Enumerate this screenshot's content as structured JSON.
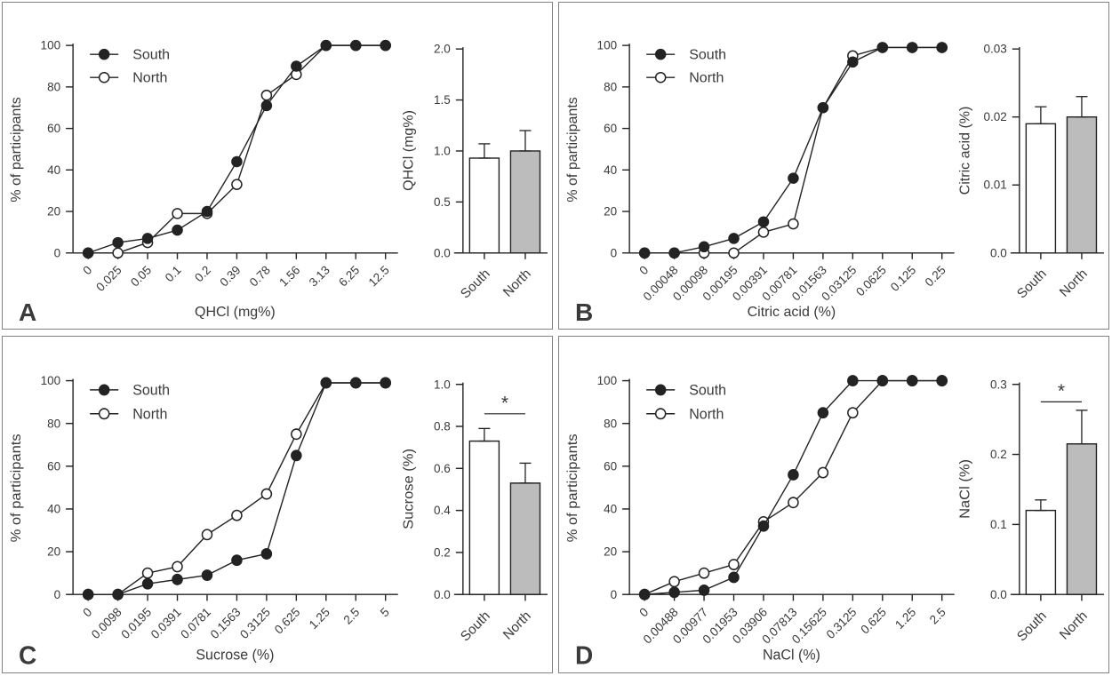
{
  "style": {
    "background": "#ffffff",
    "panel_border": "#828282",
    "ink_text": "#3a3a3a",
    "ink_line": "#232323",
    "gray_fill": "#bcbcbc",
    "white_fill": "#ffffff"
  },
  "chart_data": [
    {
      "panel_label": "A",
      "line_chart": {
        "type": "line",
        "ylabel": "% of participants",
        "xlabel": "QHCl (mg%)",
        "ylim": [
          0,
          100
        ],
        "yticks": [
          0,
          20,
          40,
          60,
          80,
          100
        ],
        "grid": false,
        "legend_position": "top-left",
        "categories": [
          "0",
          "0.025",
          "0.05",
          "0.1",
          "0.2",
          "0.39",
          "0.78",
          "1.56",
          "3.13",
          "6.25",
          "12.5"
        ],
        "series": [
          {
            "name": "South",
            "marker": "filled-circle",
            "values": [
              0,
              5,
              7,
              11,
              20,
              44,
              71,
              90,
              100,
              100,
              100
            ]
          },
          {
            "name": "North",
            "marker": "open-circle",
            "values": [
              0,
              0,
              5,
              19,
              19,
              33,
              76,
              86,
              100,
              100,
              100
            ]
          }
        ]
      },
      "bar_chart": {
        "type": "bar",
        "ylabel": "QHCl (mg%)",
        "ylim": [
          0,
          2
        ],
        "yticks": [
          0,
          0.5,
          1,
          1.5,
          2
        ],
        "ytick_labels": [
          "0.0",
          "0.5",
          "1.0",
          "1.5",
          "2.0"
        ],
        "categories": [
          "South",
          "North"
        ],
        "values": [
          0.93,
          1.0
        ],
        "errors": [
          0.14,
          0.2
        ],
        "bar_colors": [
          "#ffffff",
          "#bcbcbc"
        ],
        "significance": null
      }
    },
    {
      "panel_label": "B",
      "line_chart": {
        "type": "line",
        "ylabel": "% of participants",
        "xlabel": "Citric acid (%)",
        "ylim": [
          0,
          100
        ],
        "yticks": [
          0,
          20,
          40,
          60,
          80,
          100
        ],
        "grid": false,
        "legend_position": "top-left",
        "categories": [
          "0",
          "0.00048",
          "0.00098",
          "0.00195",
          "0.00391",
          "0.00781",
          "0.01563",
          "0.03125",
          "0.0625",
          "0.125",
          "0.25"
        ],
        "series": [
          {
            "name": "South",
            "marker": "filled-circle",
            "values": [
              0,
              0,
              3,
              7,
              15,
              36,
              70,
              92,
              99,
              99,
              99
            ]
          },
          {
            "name": "North",
            "marker": "open-circle",
            "values": [
              0,
              0,
              0,
              0,
              10,
              14,
              70,
              95,
              99,
              99,
              99
            ]
          }
        ]
      },
      "bar_chart": {
        "type": "bar",
        "ylabel": "Citric acid (%)",
        "ylim": [
          0,
          0.03
        ],
        "yticks": [
          0,
          0.01,
          0.02,
          0.03
        ],
        "ytick_labels": [
          "0.0",
          "0.01",
          "0.02",
          "0.03"
        ],
        "categories": [
          "South",
          "North"
        ],
        "values": [
          0.019,
          0.02
        ],
        "errors": [
          0.0025,
          0.003
        ],
        "bar_colors": [
          "#ffffff",
          "#bcbcbc"
        ],
        "significance": null
      }
    },
    {
      "panel_label": "C",
      "line_chart": {
        "type": "line",
        "ylabel": "% of participants",
        "xlabel": "Sucrose (%)",
        "ylim": [
          0,
          100
        ],
        "yticks": [
          0,
          20,
          40,
          60,
          80,
          100
        ],
        "grid": false,
        "legend_position": "top-left",
        "categories": [
          "0",
          "0.0098",
          "0.0195",
          "0.0391",
          "0.0781",
          "0.1563",
          "0.3125",
          "0.625",
          "1.25",
          "2.5",
          "5"
        ],
        "series": [
          {
            "name": "South",
            "marker": "filled-circle",
            "values": [
              0,
              0,
              5,
              7,
              9,
              16,
              19,
              65,
              99,
              99,
              99
            ]
          },
          {
            "name": "North",
            "marker": "open-circle",
            "values": [
              0,
              0,
              10,
              13,
              28,
              37,
              47,
              75,
              99,
              99,
              99
            ]
          }
        ]
      },
      "bar_chart": {
        "type": "bar",
        "ylabel": "Sucrose (%)",
        "ylim": [
          0,
          1
        ],
        "yticks": [
          0,
          0.2,
          0.4,
          0.6,
          0.8,
          1
        ],
        "ytick_labels": [
          "0.0",
          "0.2",
          "0.4",
          "0.6",
          "0.8",
          "1.0"
        ],
        "categories": [
          "South",
          "North"
        ],
        "values": [
          0.73,
          0.53
        ],
        "errors": [
          0.06,
          0.095
        ],
        "bar_colors": [
          "#ffffff",
          "#bcbcbc"
        ],
        "significance": {
          "label": "*",
          "y": 0.86
        }
      }
    },
    {
      "panel_label": "D",
      "line_chart": {
        "type": "line",
        "ylabel": "% of participants",
        "xlabel": "NaCl (%)",
        "ylim": [
          0,
          100
        ],
        "yticks": [
          0,
          20,
          40,
          60,
          80,
          100
        ],
        "grid": false,
        "legend_position": "top-left",
        "categories": [
          "0",
          "0.00488",
          "0.00977",
          "0.01953",
          "0.03906",
          "0.07813",
          "0.15625",
          "0.3125",
          "0.625",
          "1.25",
          "2.5"
        ],
        "series": [
          {
            "name": "South",
            "marker": "filled-circle",
            "values": [
              0,
              1,
              2,
              8,
              32,
              56,
              85,
              100,
              100,
              100,
              100
            ]
          },
          {
            "name": "North",
            "marker": "open-circle",
            "values": [
              0,
              6,
              10,
              14,
              34,
              43,
              57,
              85,
              100,
              100,
              100
            ]
          }
        ]
      },
      "bar_chart": {
        "type": "bar",
        "ylabel": "NaCl (%)",
        "ylim": [
          0,
          0.3
        ],
        "yticks": [
          0,
          0.1,
          0.2,
          0.3
        ],
        "ytick_labels": [
          "0.0",
          "0.1",
          "0.2",
          "0.3"
        ],
        "categories": [
          "South",
          "North"
        ],
        "values": [
          0.12,
          0.215
        ],
        "errors": [
          0.015,
          0.048
        ],
        "bar_colors": [
          "#ffffff",
          "#bcbcbc"
        ],
        "significance": {
          "label": "*",
          "y": 0.275
        }
      }
    }
  ]
}
